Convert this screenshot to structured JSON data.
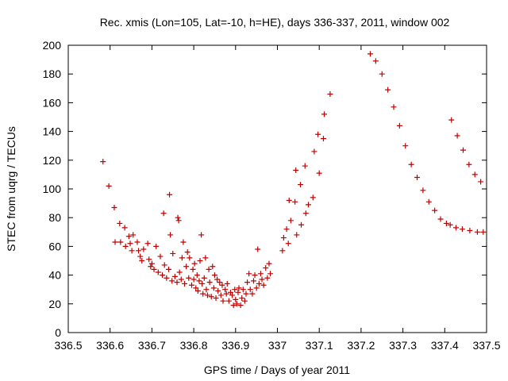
{
  "chart_data": {
    "type": "scatter",
    "title": "Rec. xmis (Lon=105, Lat=-10, h=HE), days 336-337, 2011, window 002",
    "xlabel": "GPS time / Days of year 2011",
    "ylabel": "STEC from uqrg / TECUs",
    "xlim": [
      336.5,
      337.5
    ],
    "ylim": [
      0,
      200
    ],
    "x_ticks": [
      "336.5",
      "336.6",
      "336.7",
      "336.8",
      "336.9",
      "337",
      "337.1",
      "337.2",
      "337.3",
      "337.4",
      "337.5"
    ],
    "y_ticks": [
      "0",
      "20",
      "40",
      "60",
      "80",
      "100",
      "120",
      "140",
      "160",
      "180",
      "200"
    ],
    "marker": "+",
    "color": "#c00000",
    "series": [
      {
        "name": "STEC",
        "points": [
          [
            336.583,
            119
          ],
          [
            336.597,
            102
          ],
          [
            336.61,
            87
          ],
          [
            336.612,
            63
          ],
          [
            336.623,
            76
          ],
          [
            336.625,
            63
          ],
          [
            336.635,
            73
          ],
          [
            336.637,
            60
          ],
          [
            336.645,
            67
          ],
          [
            336.648,
            62
          ],
          [
            336.652,
            57
          ],
          [
            336.655,
            68
          ],
          [
            336.665,
            63
          ],
          [
            336.668,
            57
          ],
          [
            336.672,
            53
          ],
          [
            336.676,
            50
          ],
          [
            336.68,
            58
          ],
          [
            336.69,
            62
          ],
          [
            336.693,
            51
          ],
          [
            336.697,
            46
          ],
          [
            336.7,
            48
          ],
          [
            336.705,
            44
          ],
          [
            336.71,
            60
          ],
          [
            336.715,
            42
          ],
          [
            336.72,
            53
          ],
          [
            336.725,
            40
          ],
          [
            336.728,
            83
          ],
          [
            336.73,
            47
          ],
          [
            336.735,
            38
          ],
          [
            336.74,
            44
          ],
          [
            336.742,
            96
          ],
          [
            336.744,
            68
          ],
          [
            336.748,
            36
          ],
          [
            336.75,
            55
          ],
          [
            336.755,
            39
          ],
          [
            336.76,
            35
          ],
          [
            336.762,
            80
          ],
          [
            336.764,
            78
          ],
          [
            336.766,
            42
          ],
          [
            336.77,
            37
          ],
          [
            336.772,
            52
          ],
          [
            336.775,
            63
          ],
          [
            336.778,
            34
          ],
          [
            336.782,
            46
          ],
          [
            336.785,
            56
          ],
          [
            336.788,
            38
          ],
          [
            336.79,
            52
          ],
          [
            336.795,
            33
          ],
          [
            336.798,
            44
          ],
          [
            336.8,
            37
          ],
          [
            336.802,
            48
          ],
          [
            336.805,
            31
          ],
          [
            336.808,
            40
          ],
          [
            336.81,
            29
          ],
          [
            336.813,
            36
          ],
          [
            336.815,
            50
          ],
          [
            336.818,
            68
          ],
          [
            336.82,
            34
          ],
          [
            336.822,
            27
          ],
          [
            336.825,
            38
          ],
          [
            336.828,
            52
          ],
          [
            336.83,
            30
          ],
          [
            336.833,
            26
          ],
          [
            336.836,
            44
          ],
          [
            336.838,
            35
          ],
          [
            336.842,
            25
          ],
          [
            336.845,
            46
          ],
          [
            336.848,
            31
          ],
          [
            336.85,
            40
          ],
          [
            336.853,
            24
          ],
          [
            336.856,
            37
          ],
          [
            336.858,
            29
          ],
          [
            336.862,
            35
          ],
          [
            336.865,
            26
          ],
          [
            336.868,
            33
          ],
          [
            336.87,
            22
          ],
          [
            336.875,
            30
          ],
          [
            336.878,
            27
          ],
          [
            336.88,
            34
          ],
          [
            336.884,
            22
          ],
          [
            336.888,
            28
          ],
          [
            336.892,
            26
          ],
          [
            336.895,
            19
          ],
          [
            336.898,
            30
          ],
          [
            336.9,
            23
          ],
          [
            336.903,
            20
          ],
          [
            336.906,
            28
          ],
          [
            336.908,
            31
          ],
          [
            336.912,
            19
          ],
          [
            336.915,
            24
          ],
          [
            336.918,
            30
          ],
          [
            336.922,
            22
          ],
          [
            336.925,
            27
          ],
          [
            336.928,
            35
          ],
          [
            336.932,
            41
          ],
          [
            336.935,
            30
          ],
          [
            336.94,
            27
          ],
          [
            336.943,
            36
          ],
          [
            336.946,
            40
          ],
          [
            336.95,
            31
          ],
          [
            336.953,
            58
          ],
          [
            336.956,
            34
          ],
          [
            336.96,
            41
          ],
          [
            336.963,
            37
          ],
          [
            336.967,
            33
          ],
          [
            336.972,
            45
          ],
          [
            336.976,
            38
          ],
          [
            336.98,
            48
          ],
          [
            336.983,
            41
          ],
          [
            337.012,
            57
          ],
          [
            337.015,
            66
          ],
          [
            337.022,
            72
          ],
          [
            337.026,
            62
          ],
          [
            337.028,
            92
          ],
          [
            337.032,
            78
          ],
          [
            337.042,
            91
          ],
          [
            337.044,
            113
          ],
          [
            337.046,
            68
          ],
          [
            337.055,
            103
          ],
          [
            337.057,
            75
          ],
          [
            337.066,
            116
          ],
          [
            337.068,
            83
          ],
          [
            337.074,
            89
          ],
          [
            337.085,
            94
          ],
          [
            337.088,
            126
          ],
          [
            337.097,
            138
          ],
          [
            337.1,
            111
          ],
          [
            337.11,
            135
          ],
          [
            337.112,
            152
          ],
          [
            337.126,
            166
          ],
          [
            337.222,
            194
          ],
          [
            337.235,
            189
          ],
          [
            337.25,
            180
          ],
          [
            337.264,
            169
          ],
          [
            337.278,
            157
          ],
          [
            337.292,
            144
          ],
          [
            337.306,
            130
          ],
          [
            337.32,
            117
          ],
          [
            337.334,
            108
          ],
          [
            337.348,
            99
          ],
          [
            337.362,
            91
          ],
          [
            337.376,
            85
          ],
          [
            337.39,
            79
          ],
          [
            337.404,
            76
          ],
          [
            337.413,
            75
          ],
          [
            337.416,
            148
          ],
          [
            337.427,
            73
          ],
          [
            337.43,
            137
          ],
          [
            337.442,
            72
          ],
          [
            337.444,
            127
          ],
          [
            337.458,
            117
          ],
          [
            337.46,
            71
          ],
          [
            337.472,
            110
          ],
          [
            337.478,
            70
          ],
          [
            337.486,
            105
          ],
          [
            337.492,
            70
          ]
        ]
      }
    ]
  }
}
